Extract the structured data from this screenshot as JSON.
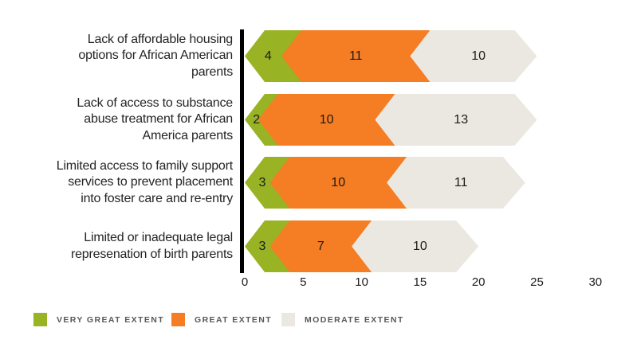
{
  "chart_data": {
    "type": "bar",
    "orientation": "horizontal",
    "stacked": true,
    "grid": false,
    "legend_position": "bottom",
    "value_labels": "inside-center",
    "categories": [
      "Lack of affordable housing options for African American parents",
      "Lack of access to substance abuse treatment for African America parents",
      "Limited access to family support services to prevent placement into foster care and re-entry",
      "Limited or inadequate legal represenation of birth parents"
    ],
    "category_lines": [
      [
        "Lack of affordable housing",
        "options for African American",
        "parents"
      ],
      [
        "Lack of access to substance",
        "abuse treatment for African",
        "America parents"
      ],
      [
        "Limited access to family support",
        "services to prevent placement",
        "into foster care and re-entry"
      ],
      [
        "Limited or inadequate legal",
        "represenation of birth parents"
      ]
    ],
    "series": [
      {
        "name": "VERY GREAT EXTENT",
        "color": "#98b323",
        "values": [
          4,
          2,
          3,
          3
        ]
      },
      {
        "name": "GREAT EXTENT",
        "color": "#f57d23",
        "values": [
          11,
          10,
          10,
          7
        ]
      },
      {
        "name": "MODERATE EXTENT",
        "color": "#eae8e0",
        "values": [
          10,
          13,
          11,
          10
        ]
      }
    ],
    "x_ticks": [
      0,
      5,
      10,
      15,
      20,
      25,
      30
    ],
    "xlim": [
      0,
      30
    ]
  },
  "colors": {
    "axis": "#000000",
    "category_text": "#262324",
    "value_text": "#1d1b19",
    "tick_text": "#1d1b19",
    "legend_text": "#57585a",
    "background": "#ffffff"
  }
}
